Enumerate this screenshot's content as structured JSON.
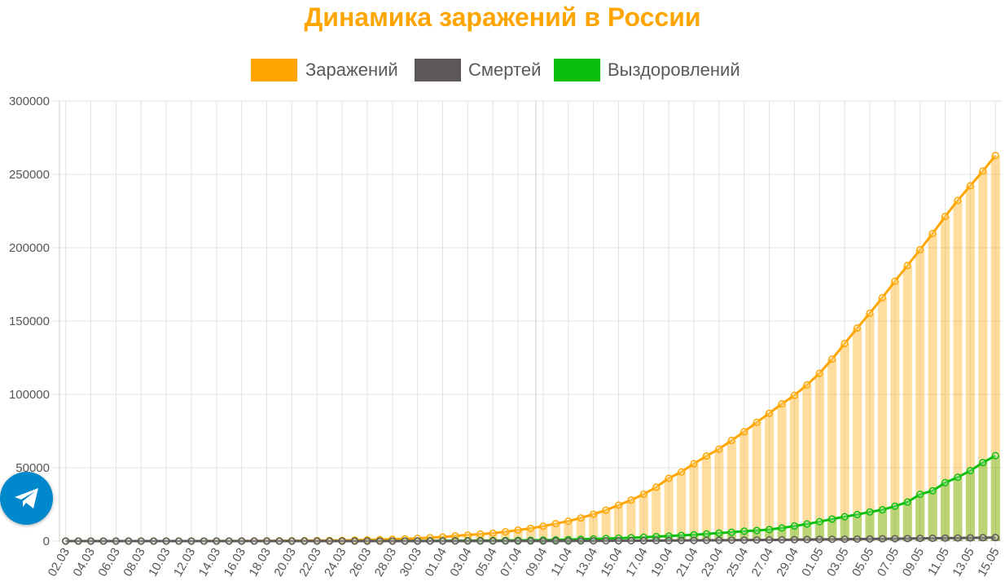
{
  "chart_data": {
    "type": "bar+line",
    "title": "Динамика заражений в России",
    "ylim": [
      0,
      300000
    ],
    "y_ticks": [
      "0",
      "50000",
      "100000",
      "150000",
      "200000",
      "250000",
      "300000"
    ],
    "grid": true,
    "legend_placement": "top",
    "x": [
      "02.03",
      "03.03",
      "04.03",
      "05.03",
      "06.03",
      "07.03",
      "08.03",
      "09.03",
      "10.03",
      "11.03",
      "12.03",
      "13.03",
      "14.03",
      "15.03",
      "16.03",
      "17.03",
      "18.03",
      "19.03",
      "20.03",
      "21.03",
      "22.03",
      "23.03",
      "24.03",
      "25.03",
      "26.03",
      "27.03",
      "28.03",
      "29.03",
      "30.03",
      "31.03",
      "01.04",
      "02.04",
      "03.04",
      "04.04",
      "05.04",
      "06.04",
      "07.04",
      "08.04",
      "09.04",
      "10.04",
      "11.04",
      "12.04",
      "13.04",
      "14.04",
      "15.04",
      "16.04",
      "17.04",
      "18.04",
      "19.04",
      "20.04",
      "21.04",
      "22.04",
      "23.04",
      "24.04",
      "25.04",
      "26.04",
      "27.04",
      "28.04",
      "29.04",
      "30.04",
      "01.05",
      "02.05",
      "03.05",
      "04.05",
      "05.05",
      "06.05",
      "07.05",
      "08.05",
      "09.05",
      "10.05",
      "11.05",
      "12.05",
      "13.05",
      "14.05",
      "15.05"
    ],
    "x_tick_labels": [
      "02.03",
      "04.03",
      "06.03",
      "08.03",
      "10.03",
      "12.03",
      "14.03",
      "16.03",
      "18.03",
      "20.03",
      "22.03",
      "24.03",
      "26.03",
      "28.03",
      "30.03",
      "01.04",
      "03.04",
      "05.04",
      "07.04",
      "09.04",
      "11.04",
      "13.04",
      "15.04",
      "17.04",
      "19.04",
      "21.04",
      "23.04",
      "25.04",
      "27.04",
      "29.04",
      "01.05",
      "03.05",
      "05.05",
      "07.05",
      "09.05",
      "11.05",
      "13.05",
      "15.05"
    ],
    "series": [
      {
        "name": "Заражений",
        "color": "#ffa500",
        "values": [
          3,
          3,
          3,
          4,
          10,
          14,
          17,
          17,
          20,
          28,
          34,
          45,
          59,
          63,
          93,
          114,
          147,
          199,
          253,
          306,
          367,
          438,
          495,
          658,
          840,
          1036,
          1264,
          1534,
          1836,
          2337,
          2777,
          3548,
          4149,
          4731,
          5389,
          6343,
          7497,
          8672,
          10131,
          11917,
          13584,
          15770,
          18328,
          21102,
          24490,
          27938,
          32008,
          36793,
          42853,
          47121,
          52763,
          57999,
          62773,
          68622,
          74588,
          80949,
          87147,
          93558,
          99399,
          106498,
          114431,
          124054,
          134687,
          145268,
          155370,
          165929,
          177160,
          187859,
          198676,
          209688,
          221344,
          232243,
          242271,
          252245,
          262843
        ]
      },
      {
        "name": "Смертей",
        "color": "#5d5757",
        "values": [
          0,
          0,
          0,
          0,
          0,
          0,
          0,
          0,
          0,
          0,
          0,
          0,
          0,
          0,
          0,
          0,
          0,
          1,
          1,
          1,
          1,
          1,
          1,
          3,
          3,
          4,
          4,
          8,
          9,
          17,
          24,
          30,
          34,
          43,
          45,
          47,
          58,
          63,
          76,
          94,
          106,
          130,
          148,
          170,
          198,
          232,
          273,
          313,
          361,
          405,
          456,
          513,
          555,
          615,
          681,
          747,
          794,
          867,
          972,
          1073,
          1169,
          1222,
          1280,
          1356,
          1451,
          1537,
          1625,
          1723,
          1827,
          1915,
          2009,
          2116,
          2212,
          2305,
          2418
        ]
      },
      {
        "name": "Выздоровлений",
        "color": "#0dbf0d",
        "values": [
          0,
          0,
          0,
          0,
          0,
          0,
          0,
          0,
          0,
          0,
          0,
          0,
          0,
          0,
          0,
          0,
          0,
          0,
          9,
          12,
          16,
          17,
          22,
          29,
          38,
          45,
          49,
          64,
          66,
          121,
          190,
          235,
          281,
          333,
          355,
          406,
          494,
          580,
          698,
          795,
          1045,
          1238,
          1470,
          1694,
          1986,
          2304,
          2590,
          3057,
          3446,
          3873,
          4277,
          4891,
          5476,
          6012,
          6767,
          7223,
          7846,
          8965,
          10286,
          11619,
          13220,
          15013,
          16639,
          18097,
          19865,
          21327,
          23803,
          26608,
          31916,
          34306,
          39801,
          43512,
          48003,
          53530,
          58226
        ]
      }
    ]
  },
  "fab": {
    "icon": "telegram-icon",
    "color": "#0088cc"
  }
}
